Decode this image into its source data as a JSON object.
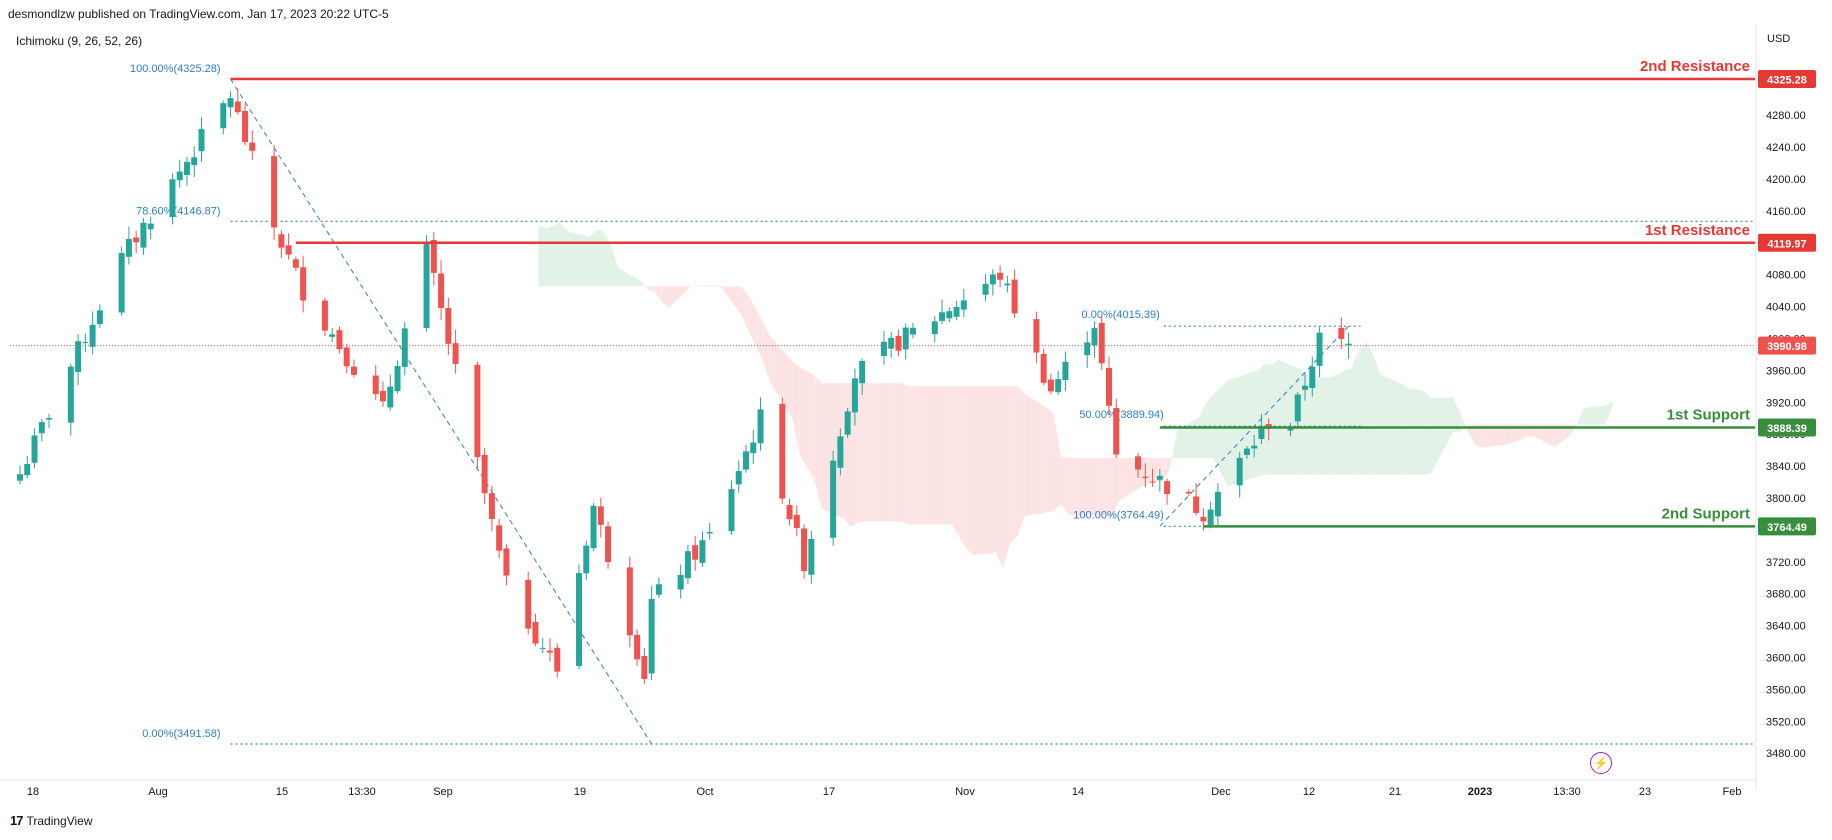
{
  "header": {
    "published_by": "desmondlzw published on TradingView.com, Jan 17, 2023 20:22 UTC-5",
    "indicator": "Ichimoku (9, 26, 52, 26)",
    "currency": "USD",
    "footer_brand": "TradingView"
  },
  "colors": {
    "up": "#26a69a",
    "down": "#ef5350",
    "resistance": "#e53935",
    "support": "#388e3c",
    "fib": "#2f80c7",
    "cloud_bull": "#e3f2e6",
    "cloud_bear": "#fde4e4",
    "price_line": "#ef5350"
  },
  "icons": {
    "footer_logo": "tradingview-logo-icon",
    "bolt": "lightning-bolt-icon"
  },
  "chart_data": {
    "type": "candlestick",
    "ylim": [
      3460,
      4340
    ],
    "y_ticks": [
      3480,
      3520,
      3560,
      3600,
      3640,
      3680,
      3720,
      3760,
      3800,
      3840,
      3880,
      3920,
      3960,
      4000,
      4040,
      4080,
      4120,
      4160,
      4200,
      4240,
      4280,
      4320
    ],
    "y_tick_labels": [
      "3480.00",
      "3520.00",
      "3560.00",
      "3600.00",
      "3640.00",
      "3680.00",
      "3720.00",
      "3760.00",
      "3800.00",
      "3840.00",
      "3880.00",
      "3920.00",
      "3960.00",
      "4000.00",
      "4040.00",
      "4080.00",
      "4120.00",
      "4160.00",
      "4200.00",
      "4240.00",
      "4280.00",
      "4320.00"
    ],
    "x_labels": [
      "18",
      "Aug",
      "15",
      "13:30",
      "Sep",
      "19",
      "Oct",
      "17",
      "Nov",
      "14",
      "Dec",
      "12",
      "21",
      "2023",
      "13:30",
      "23",
      "Feb"
    ],
    "current_price": {
      "value": 3990.98,
      "label": "3990.98"
    },
    "levels": [
      {
        "name": "2nd Resistance",
        "value": 4325.28,
        "label": "4325.28",
        "kind": "resistance"
      },
      {
        "name": "1st Resistance",
        "value": 4119.97,
        "label": "4119.97",
        "kind": "resistance"
      },
      {
        "name": "1st Support",
        "value": 3888.39,
        "label": "3888.39",
        "kind": "support"
      },
      {
        "name": "2nd Support",
        "value": 3764.49,
        "label": "3764.49",
        "kind": "support"
      }
    ],
    "fib_a": [
      {
        "label": "100.00%(4325.28)",
        "value": 4325.28
      },
      {
        "label": "78.60%(4146.87)",
        "value": 4146.87
      },
      {
        "label": "0.00%(3491.58)",
        "value": 3491.58
      }
    ],
    "fib_b": [
      {
        "label": "0.00%(4015.39)",
        "value": 4015.39
      },
      {
        "label": "50.00%(3889.94)",
        "value": 3889.94
      },
      {
        "label": "100.00%(3764.49)",
        "value": 3764.49
      }
    ],
    "anchors": [
      {
        "date": "2022-07-18",
        "close": 3830
      },
      {
        "date": "2022-08-01",
        "close": 4100
      },
      {
        "date": "2022-08-16",
        "close": 4305
      },
      {
        "date": "2022-08-22",
        "close": 4140
      },
      {
        "date": "2022-08-26",
        "close": 4060
      },
      {
        "date": "2022-09-06",
        "close": 3910
      },
      {
        "date": "2022-09-12",
        "close": 4110
      },
      {
        "date": "2022-09-23",
        "close": 3690
      },
      {
        "date": "2022-09-30",
        "close": 3585
      },
      {
        "date": "2022-10-05",
        "close": 3790
      },
      {
        "date": "2022-10-12",
        "close": 3580
      },
      {
        "date": "2022-10-13",
        "close": 3670
      },
      {
        "date": "2022-10-21",
        "close": 3752
      },
      {
        "date": "2022-10-28",
        "close": 3900
      },
      {
        "date": "2022-11-03",
        "close": 3720
      },
      {
        "date": "2022-11-10",
        "close": 3955
      },
      {
        "date": "2022-11-15",
        "close": 3990
      },
      {
        "date": "2022-11-30",
        "close": 4080
      },
      {
        "date": "2022-12-07",
        "close": 3935
      },
      {
        "date": "2022-12-13",
        "close": 4020
      },
      {
        "date": "2022-12-16",
        "close": 3852
      },
      {
        "date": "2022-12-22",
        "close": 3822
      },
      {
        "date": "2022-12-28",
        "close": 3783
      },
      {
        "date": "2023-01-06",
        "close": 3895
      },
      {
        "date": "2023-01-09",
        "close": 3892
      },
      {
        "date": "2023-01-13",
        "close": 3999
      },
      {
        "date": "2023-01-17",
        "close": 3991
      }
    ]
  }
}
